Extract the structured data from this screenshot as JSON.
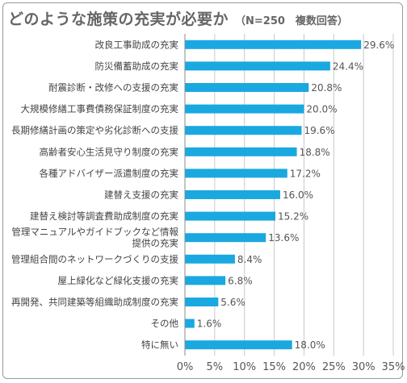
{
  "title": "どのような施策の充実が必要か",
  "subtitle": "（N=250　複数回答）",
  "colors": {
    "bar": "#1aa8e0",
    "grid": "#c8c8c8",
    "axis": "#888888"
  },
  "chart_data": {
    "type": "bar",
    "orientation": "horizontal",
    "title": "どのような施策の充実が必要か",
    "subtitle": "（N=250　複数回答）",
    "xlabel": "",
    "ylabel": "",
    "xlim": [
      0,
      35
    ],
    "x_ticks": [
      "0%",
      "5%",
      "10%",
      "15%",
      "20%",
      "25%",
      "30%",
      "35%"
    ],
    "grid": true,
    "legend": "none",
    "categories": [
      [
        "改良工事助成の充実"
      ],
      [
        "防災備蓄助成の充実"
      ],
      [
        "耐震診断・改修への支援の充実"
      ],
      [
        "大規模修繕工事費債務保証制度の充実"
      ],
      [
        "長期修繕計画の策定や劣化診断への支援"
      ],
      [
        "高齢者安心生活見守り制度の充実"
      ],
      [
        "各種アドバイザー派遣制度の充実"
      ],
      [
        "建替え支援の充実"
      ],
      [
        "建替え検討等調査費助成制度の充実"
      ],
      [
        "管理マニュアルやガイドブックなど情報",
        "提供の充実"
      ],
      [
        "管理組合間のネットワークづくりの支援"
      ],
      [
        "屋上緑化など緑化支援の充実"
      ],
      [
        "再開発、共同建築等組織助成制度の充実"
      ],
      [
        "その他"
      ],
      [
        "特に無い"
      ]
    ],
    "values": [
      29.6,
      24.4,
      20.8,
      20.0,
      19.6,
      18.8,
      17.2,
      16.0,
      15.2,
      13.6,
      8.4,
      6.8,
      5.6,
      1.6,
      18.0
    ],
    "value_labels": [
      "29.6%",
      "24.4%",
      "20.8%",
      "20.0%",
      "19.6%",
      "18.8%",
      "17.2%",
      "16.0%",
      "15.2%",
      "13.6%",
      "8.4%",
      "6.8%",
      "5.6%",
      "1.6%",
      "18.0%"
    ]
  }
}
